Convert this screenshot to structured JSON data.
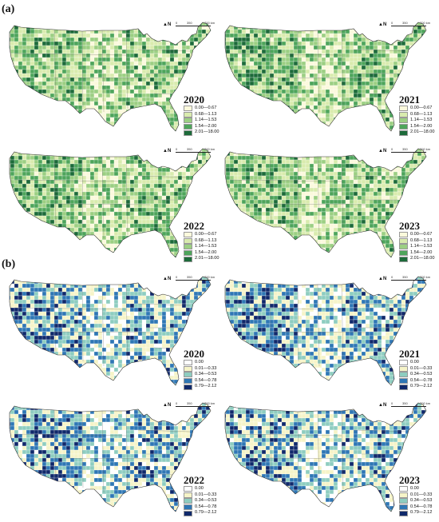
{
  "panels": [
    {
      "label": "(a)"
    },
    {
      "label": "(b)"
    }
  ],
  "north_label": "N",
  "scale_labels": [
    "0",
    "350",
    "700 km"
  ],
  "legend_a": {
    "items": [
      {
        "label": "0.00—0.67",
        "color": "#fbf9dc"
      },
      {
        "label": "0.68—1.13",
        "color": "#d9ebae"
      },
      {
        "label": "1.14—1.53",
        "color": "#9ccf83"
      },
      {
        "label": "1.54—2.00",
        "color": "#4ea55b"
      },
      {
        "label": "2.01—18.00",
        "color": "#1d6b3a"
      }
    ]
  },
  "legend_b": {
    "items": [
      {
        "label": "0.00",
        "color": "#ffffff"
      },
      {
        "label": "0.01—0.33",
        "color": "#f6f4c8"
      },
      {
        "label": "0.34—0.53",
        "color": "#8ecdc0"
      },
      {
        "label": "0.54—0.78",
        "color": "#2f77b5"
      },
      {
        "label": "0.79—2.12",
        "color": "#10296b"
      }
    ]
  },
  "maps": [
    {
      "year": "2020",
      "panel": "a",
      "legend": "legend_a"
    },
    {
      "year": "2021",
      "panel": "a",
      "legend": "legend_a"
    },
    {
      "year": "2022",
      "panel": "a",
      "legend": "legend_a"
    },
    {
      "year": "2023",
      "panel": "a",
      "legend": "legend_a"
    },
    {
      "year": "2020",
      "panel": "b",
      "legend": "legend_b"
    },
    {
      "year": "2021",
      "panel": "b",
      "legend": "legend_b"
    },
    {
      "year": "2022",
      "panel": "b",
      "legend": "legend_b"
    },
    {
      "year": "2023",
      "panel": "b",
      "legend": "legend_b"
    }
  ]
}
